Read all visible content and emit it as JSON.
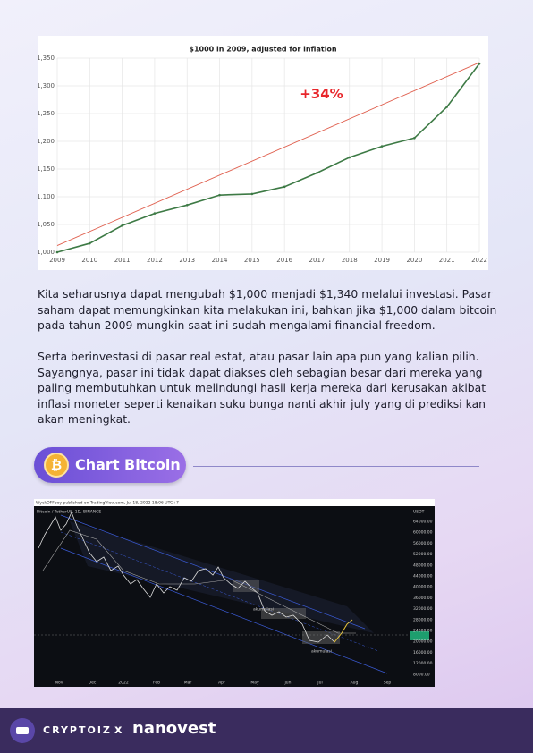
{
  "chart": {
    "type": "line",
    "title": "$1000 in 2009, adjusted for inflation",
    "x": [
      2009,
      2010,
      2011,
      2012,
      2013,
      2014,
      2015,
      2016,
      2017,
      2018,
      2019,
      2020,
      2021,
      2022
    ],
    "values": [
      1000,
      1016,
      1048,
      1070,
      1085,
      1103,
      1105,
      1118,
      1143,
      1171,
      1191,
      1206,
      1262,
      1340
    ],
    "color": "#3d7a45",
    "trend_x": [
      2009,
      2022
    ],
    "trend_values": [
      1012,
      1342
    ],
    "trend_color": "#e0604f",
    "annotation": "+34%",
    "xlim": [
      2009,
      2022
    ],
    "xticks": [
      2009,
      2010,
      2011,
      2012,
      2013,
      2014,
      2015,
      2016,
      2017,
      2018,
      2019,
      2020,
      2021,
      2022
    ],
    "ylim": [
      1000,
      1350
    ],
    "yticks": [
      {
        "value": 1000,
        "label": "1,000"
      },
      {
        "value": 1050,
        "label": "1,050"
      },
      {
        "value": 1100,
        "label": "1,100"
      },
      {
        "value": 1150,
        "label": "1,150"
      },
      {
        "value": 1200,
        "label": "1,200"
      },
      {
        "value": 1250,
        "label": "1,250"
      },
      {
        "value": 1300,
        "label": "1,300"
      },
      {
        "value": 1350,
        "label": "1,350"
      }
    ],
    "grid": true
  },
  "paragraphs": [
    "Kita seharusnya dapat mengubah $1,000 menjadi $1,340 melalui investasi. Pasar saham dapat memungkinkan kita melakukan ini, bahkan jika $1,000 dalam bitcoin pada tahun 2009 mungkin saat ini sudah mengalami financial freedom.",
    "Serta berinvestasi di pasar real estat, atau pasar lain apa pun yang kalian pilih. Sayangnya, pasar ini tidak dapat diakses oleh sebagian besar dari mereka yang paling membutuhkan untuk melindungi hasil kerja mereka dari kerusakan akibat inflasi moneter seperti kenaikan suku bunga nanti akhir july yang di prediksi kan akan meningkat."
  ],
  "section": {
    "title": "Chart Bitcoin"
  },
  "screenshot": {
    "header": "WyckOFFboy published on TradingView.com, Jul 18, 2022 18:06 UTC+7",
    "symbol": "Bitcoin / TetherUS, 1D, BINANCE",
    "currency": "USDT",
    "price_labels": [
      "64000.00",
      "60000.00",
      "56000.00",
      "52000.00",
      "48000.00",
      "44000.00",
      "40000.00",
      "36000.00",
      "32000.00",
      "28000.00",
      "24000.00",
      "20000.00",
      "16000.00",
      "12000.00",
      "8000.00"
    ],
    "time_labels": [
      "Nov",
      "Dec",
      "2022",
      "Feb",
      "Mar",
      "Apr",
      "May",
      "Jun",
      "Jul",
      "Aug",
      "Sep"
    ],
    "annotations": [
      "akumulasi",
      "akumulasi"
    ]
  },
  "footer": {
    "brand": "CRYPTOIZ",
    "separator": "x",
    "partner": "nanovest"
  }
}
